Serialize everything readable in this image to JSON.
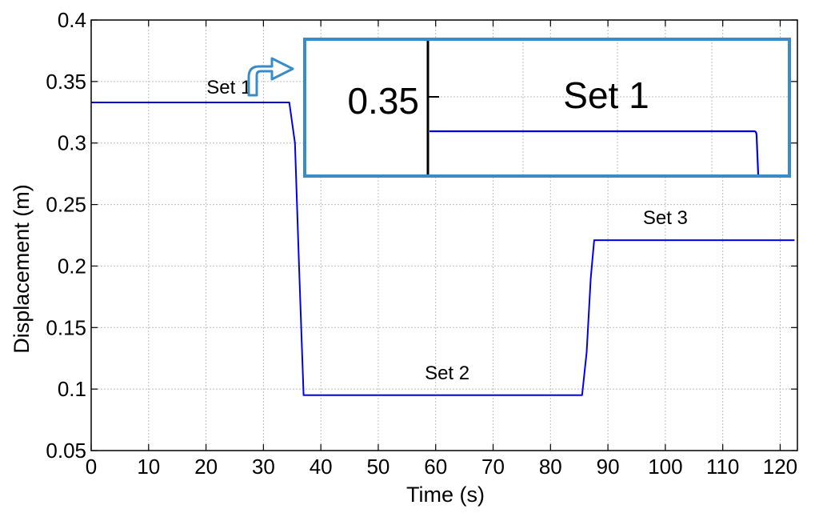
{
  "chart_data": {
    "type": "line",
    "xlabel": "Time (s)",
    "ylabel": "Displacement (m)",
    "xlim": [
      0,
      123
    ],
    "ylim": [
      0.05,
      0.4
    ],
    "xticks": [
      0,
      10,
      20,
      30,
      40,
      50,
      60,
      70,
      80,
      90,
      100,
      110,
      120
    ],
    "yticks": [
      0.05,
      0.1,
      0.15,
      0.2,
      0.25,
      0.3,
      0.35,
      0.4
    ],
    "xtick_labels": [
      "0",
      "10",
      "20",
      "30",
      "40",
      "50",
      "60",
      "70",
      "80",
      "90",
      "100",
      "110",
      "120"
    ],
    "ytick_labels": [
      "0.05",
      "0.1",
      "0.15",
      "0.2",
      "0.25",
      "0.3",
      "0.35",
      "0.4"
    ],
    "grid": true,
    "line_color": "#0000ee",
    "series": [
      {
        "x": [
          0,
          34.5,
          35.5,
          36.2,
          37,
          85.5,
          86.3,
          87,
          87.6,
          122.5
        ],
        "y": [
          0.333,
          0.333,
          0.3,
          0.2,
          0.095,
          0.095,
          0.13,
          0.19,
          0.221,
          0.221
        ]
      }
    ],
    "annotations": [
      {
        "text": "Set 1",
        "x": 24,
        "y": 0.34
      },
      {
        "text": "Set 2",
        "x": 62,
        "y": 0.108
      },
      {
        "text": "Set 3",
        "x": 100,
        "y": 0.234
      }
    ],
    "inset": {
      "border_color": "#3a8cc8",
      "tick_label": "0.35",
      "label": "Set 1"
    }
  }
}
